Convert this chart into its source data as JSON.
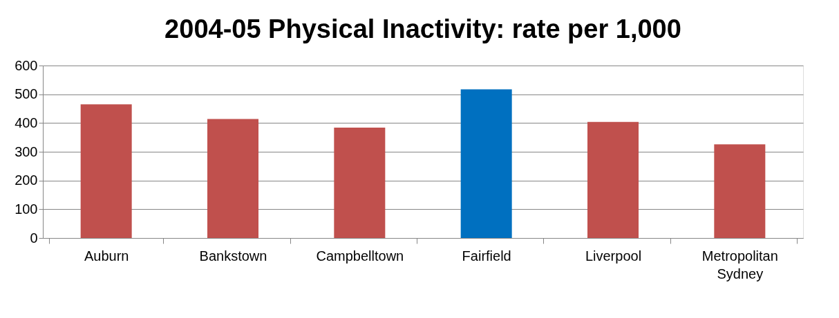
{
  "chart_data": {
    "type": "bar",
    "title": "2004-05 Physical Inactivity: rate per 1,000",
    "categories": [
      "Auburn",
      "Bankstown",
      "Campbelltown",
      "Fairfield",
      "Liverpool",
      "Metropolitan Sydney"
    ],
    "values": [
      465,
      414,
      384,
      517,
      404,
      326
    ],
    "colors": [
      "#c0504d",
      "#c0504d",
      "#c0504d",
      "#0070c0",
      "#c0504d",
      "#c0504d"
    ],
    "ylim": [
      0,
      600
    ],
    "yticks": [
      0,
      100,
      200,
      300,
      400,
      500,
      600
    ],
    "grid": "y",
    "legend": false
  }
}
